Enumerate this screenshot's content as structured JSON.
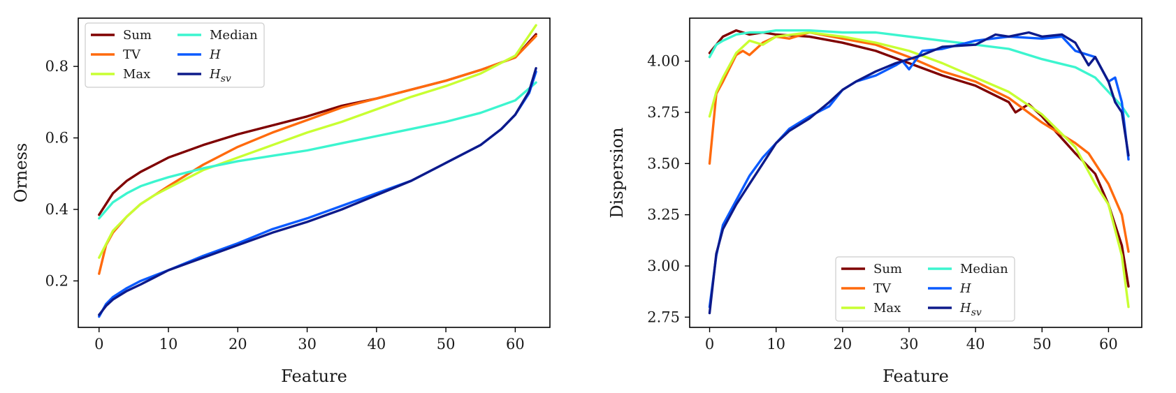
{
  "chart_data": [
    {
      "type": "line",
      "xlabel": "Feature",
      "ylabel": "Orness",
      "xlim": [
        -3,
        65
      ],
      "ylim": [
        0.07,
        0.935
      ],
      "xticks": [
        0,
        10,
        20,
        30,
        40,
        50,
        60
      ],
      "yticks": [
        0.2,
        0.4,
        0.6,
        0.8
      ],
      "ytick_labels": [
        "0.2",
        "0.4",
        "0.6",
        "0.8"
      ],
      "legend": {
        "location": "upper-left",
        "columns": 2
      },
      "series": [
        {
          "name": "Sum",
          "color": "#7f0000",
          "x": [
            0,
            2,
            4,
            6,
            8,
            10,
            15,
            20,
            25,
            30,
            35,
            40,
            45,
            50,
            55,
            60,
            63
          ],
          "y": [
            0.385,
            0.445,
            0.48,
            0.505,
            0.525,
            0.545,
            0.58,
            0.61,
            0.635,
            0.66,
            0.69,
            0.71,
            0.735,
            0.76,
            0.79,
            0.825,
            0.89
          ]
        },
        {
          "name": "TV",
          "color": "#ff6a0d",
          "x": [
            0,
            1,
            2,
            4,
            6,
            8,
            10,
            15,
            20,
            25,
            30,
            35,
            40,
            45,
            50,
            55,
            60,
            63
          ],
          "y": [
            0.22,
            0.3,
            0.335,
            0.38,
            0.415,
            0.44,
            0.465,
            0.525,
            0.575,
            0.615,
            0.65,
            0.685,
            0.71,
            0.735,
            0.76,
            0.79,
            0.825,
            0.885
          ]
        },
        {
          "name": "Max",
          "color": "#c8ff32",
          "x": [
            0,
            2,
            4,
            6,
            8,
            10,
            15,
            20,
            25,
            30,
            35,
            40,
            45,
            50,
            55,
            60,
            63
          ],
          "y": [
            0.265,
            0.34,
            0.38,
            0.415,
            0.44,
            0.46,
            0.51,
            0.545,
            0.58,
            0.615,
            0.645,
            0.68,
            0.715,
            0.745,
            0.78,
            0.83,
            0.915
          ]
        },
        {
          "name": "Median",
          "color": "#3cf5cf",
          "x": [
            0,
            2,
            4,
            6,
            8,
            10,
            15,
            20,
            25,
            30,
            35,
            40,
            45,
            50,
            55,
            60,
            63
          ],
          "y": [
            0.375,
            0.42,
            0.445,
            0.465,
            0.478,
            0.49,
            0.515,
            0.535,
            0.55,
            0.565,
            0.585,
            0.605,
            0.625,
            0.645,
            0.67,
            0.705,
            0.755
          ]
        },
        {
          "name": "H",
          "color": "#0b5bff",
          "x": [
            0,
            1,
            2,
            4,
            6,
            8,
            10,
            15,
            20,
            25,
            30,
            35,
            40,
            45,
            50,
            55,
            58,
            60,
            62,
            63
          ],
          "y": [
            0.1,
            0.135,
            0.155,
            0.18,
            0.2,
            0.215,
            0.23,
            0.27,
            0.305,
            0.345,
            0.375,
            0.41,
            0.445,
            0.48,
            0.53,
            0.58,
            0.625,
            0.665,
            0.725,
            0.785
          ]
        },
        {
          "name": "H_sv",
          "color": "#0d1a8a",
          "x": [
            0,
            1,
            2,
            4,
            6,
            8,
            10,
            15,
            20,
            25,
            30,
            35,
            40,
            45,
            50,
            55,
            58,
            60,
            62,
            63
          ],
          "y": [
            0.105,
            0.13,
            0.148,
            0.172,
            0.19,
            0.21,
            0.23,
            0.265,
            0.3,
            0.335,
            0.365,
            0.4,
            0.44,
            0.48,
            0.53,
            0.58,
            0.625,
            0.665,
            0.73,
            0.795
          ]
        }
      ]
    },
    {
      "type": "line",
      "xlabel": "Feature",
      "ylabel": "Dispersion",
      "xlim": [
        -3,
        65
      ],
      "ylim": [
        2.7,
        4.21
      ],
      "xticks": [
        0,
        10,
        20,
        30,
        40,
        50,
        60
      ],
      "yticks": [
        2.75,
        3.0,
        3.25,
        3.5,
        3.75,
        4.0
      ],
      "ytick_labels": [
        "2.75",
        "3.00",
        "3.25",
        "3.50",
        "3.75",
        "4.00"
      ],
      "legend": {
        "location": "lower-center",
        "columns": 2
      },
      "series": [
        {
          "name": "Sum",
          "color": "#7f0000",
          "x": [
            0,
            2,
            4,
            6,
            8,
            10,
            15,
            20,
            25,
            30,
            35,
            40,
            45,
            46,
            48,
            50,
            55,
            58,
            60,
            62,
            63
          ],
          "y": [
            4.04,
            4.12,
            4.15,
            4.13,
            4.14,
            4.13,
            4.12,
            4.09,
            4.05,
            3.99,
            3.93,
            3.88,
            3.8,
            3.75,
            3.79,
            3.73,
            3.55,
            3.45,
            3.3,
            3.1,
            2.9
          ]
        },
        {
          "name": "TV",
          "color": "#ff6a0d",
          "x": [
            0,
            1,
            2,
            4,
            5,
            6,
            8,
            10,
            12,
            15,
            20,
            25,
            30,
            35,
            40,
            45,
            50,
            55,
            57,
            60,
            62,
            63
          ],
          "y": [
            3.5,
            3.84,
            3.9,
            4.03,
            4.05,
            4.03,
            4.09,
            4.12,
            4.11,
            4.14,
            4.11,
            4.08,
            4.02,
            3.95,
            3.9,
            3.82,
            3.7,
            3.6,
            3.55,
            3.4,
            3.25,
            3.07
          ]
        },
        {
          "name": "Max",
          "color": "#c8ff32",
          "x": [
            0,
            1,
            2,
            4,
            6,
            8,
            10,
            15,
            20,
            25,
            30,
            35,
            40,
            45,
            50,
            55,
            58,
            60,
            62,
            63
          ],
          "y": [
            3.73,
            3.85,
            3.92,
            4.04,
            4.1,
            4.08,
            4.12,
            4.14,
            4.12,
            4.09,
            4.05,
            3.99,
            3.92,
            3.85,
            3.74,
            3.58,
            3.4,
            3.3,
            3.05,
            2.8
          ]
        },
        {
          "name": "Median",
          "color": "#3cf5cf",
          "x": [
            0,
            1,
            2,
            4,
            6,
            8,
            10,
            15,
            20,
            25,
            30,
            35,
            40,
            45,
            50,
            55,
            58,
            60,
            62,
            63
          ],
          "y": [
            4.02,
            4.08,
            4.1,
            4.13,
            4.14,
            4.14,
            4.15,
            4.15,
            4.14,
            4.14,
            4.12,
            4.1,
            4.08,
            4.06,
            4.01,
            3.97,
            3.92,
            3.85,
            3.78,
            3.73
          ]
        },
        {
          "name": "H",
          "color": "#0b5bff",
          "x": [
            0,
            1,
            2,
            4,
            6,
            8,
            10,
            12,
            15,
            18,
            20,
            22,
            25,
            28,
            29,
            30,
            32,
            35,
            40,
            45,
            50,
            53,
            55,
            58,
            60,
            61,
            62,
            63
          ],
          "y": [
            2.8,
            3.05,
            3.2,
            3.32,
            3.44,
            3.53,
            3.6,
            3.67,
            3.73,
            3.78,
            3.86,
            3.9,
            3.93,
            3.98,
            4.0,
            3.96,
            4.05,
            4.06,
            4.1,
            4.12,
            4.11,
            4.12,
            4.05,
            4.02,
            3.9,
            3.92,
            3.8,
            3.52
          ]
        },
        {
          "name": "H_sv",
          "color": "#0d1a8a",
          "x": [
            0,
            1,
            2,
            4,
            6,
            8,
            10,
            12,
            15,
            18,
            20,
            22,
            25,
            28,
            30,
            32,
            35,
            40,
            43,
            45,
            48,
            50,
            53,
            55,
            57,
            58,
            60,
            61,
            62,
            63
          ],
          "y": [
            2.77,
            3.06,
            3.18,
            3.3,
            3.4,
            3.5,
            3.6,
            3.66,
            3.72,
            3.8,
            3.86,
            3.9,
            3.95,
            3.99,
            4.01,
            4.03,
            4.07,
            4.08,
            4.13,
            4.12,
            4.14,
            4.12,
            4.13,
            4.09,
            3.98,
            4.02,
            3.9,
            3.8,
            3.75,
            3.54
          ]
        }
      ]
    }
  ]
}
